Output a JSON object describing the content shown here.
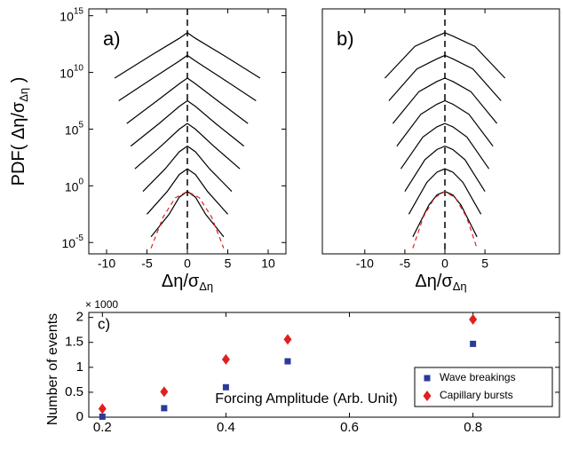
{
  "chart_data": [
    {
      "type": "line",
      "panel_label": "a)",
      "log_y": true,
      "vline": 0,
      "xlabel": {
        "main": "Δη/σ",
        "sub": "Δη"
      },
      "ylabel": {
        "main": "PDF( Δη/σ",
        "sub": "Δη",
        "end": " )"
      },
      "xlim": [
        -12.2,
        12.2
      ],
      "xticks": [
        -10,
        -5,
        0,
        5,
        10
      ],
      "ylim": [
        1e-06,
        4000000000000000.0
      ],
      "yticks": [
        {
          "value": 1e-05,
          "label": "10",
          "sup": "-5"
        },
        {
          "value": 1,
          "label": "10",
          "sup": "0"
        },
        {
          "value": 100000.0,
          "label": "10",
          "sup": "5"
        },
        {
          "value": 10000000000.0,
          "label": "10",
          "sup": "10"
        },
        {
          "value": 1000000000000000.0,
          "label": "10",
          "sup": "15"
        }
      ],
      "series": [
        {
          "color": "#000000",
          "x": [
            -4.5,
            -2.25,
            -1,
            0,
            1,
            2.25,
            4.5
          ],
          "values": [
            3.16e-05,
            0.00316,
            0.1,
            0.316,
            0.1,
            0.00316,
            3.16e-05
          ]
        },
        {
          "color": "#000000",
          "x": [
            -5,
            -2.5,
            -1,
            0,
            1,
            2.5,
            5
          ],
          "values": [
            0.00316,
            0.316,
            10.0,
            31.6,
            10.0,
            0.316,
            0.00316
          ]
        },
        {
          "color": "#000000",
          "x": [
            -5.5,
            -2.75,
            -1,
            0,
            1,
            2.75,
            5.5
          ],
          "values": [
            0.316,
            31.6,
            1000.0,
            3160.0,
            1000.0,
            31.6,
            0.316
          ]
        },
        {
          "color": "#000000",
          "x": [
            -6.5,
            -3.25,
            -1,
            0,
            1,
            3.25,
            6.5
          ],
          "values": [
            31.6,
            3160.0,
            100000.0,
            316000.0,
            100000.0,
            3160.0,
            31.6
          ]
        },
        {
          "color": "#000000",
          "x": [
            -7,
            -3.5,
            -1,
            0,
            1,
            3.5,
            7
          ],
          "values": [
            3160.0,
            316000.0,
            10000000.0,
            31600000.0,
            10000000.0,
            316000.0,
            3160.0
          ]
        },
        {
          "color": "#000000",
          "x": [
            -7.5,
            -3.75,
            -1,
            0,
            1,
            3.75,
            7.5
          ],
          "values": [
            316000.0,
            31600000.0,
            1000000000.0,
            3160000000.0,
            1000000000.0,
            31600000.0,
            316000.0
          ]
        },
        {
          "color": "#000000",
          "x": [
            -8.5,
            -4.25,
            -1,
            0,
            1,
            4.25,
            8.5
          ],
          "values": [
            31600000.0,
            3160000000.0,
            100000000000.0,
            316000000000.0,
            100000000000.0,
            3160000000.0,
            31600000.0
          ]
        },
        {
          "color": "#000000",
          "x": [
            -9,
            -4.5,
            -1,
            0,
            1,
            4.5,
            9
          ],
          "values": [
            3160000000.0,
            316000000000.0,
            10000000000000.0,
            31600000000000.0,
            10000000000000.0,
            316000000000.0,
            3160000000.0
          ]
        },
        {
          "color": "#e02020",
          "dash": true,
          "x": [
            -4.5,
            -3,
            -1.5,
            0,
            1.5,
            3,
            4.5
          ],
          "values": [
            3.16e-06,
            0.00178,
            0.087,
            0.316,
            0.087,
            0.00178,
            3.16e-06
          ]
        }
      ]
    },
    {
      "type": "line",
      "panel_label": "b)",
      "log_y": true,
      "vline": 0,
      "xlabel": {
        "main": "Δη/σ",
        "sub": "Δη"
      },
      "xlim": [
        -15.3,
        14.3
      ],
      "xticks": [
        -10,
        -5,
        0,
        5
      ],
      "ylim": [
        1e-06,
        4000000000000000.0
      ],
      "series": [
        {
          "color": "#000000",
          "x": [
            -4,
            -2,
            -1,
            0,
            1,
            2,
            4
          ],
          "values": [
            3.16e-05,
            0.02,
            0.158,
            0.316,
            0.158,
            0.02,
            3.16e-05
          ]
        },
        {
          "color": "#000000",
          "x": [
            -4.5,
            -2.25,
            -1,
            0,
            1,
            2.25,
            4.5
          ],
          "values": [
            0.00316,
            2,
            15.8,
            31.6,
            15.8,
            2,
            0.00316
          ]
        },
        {
          "color": "#000000",
          "x": [
            -5,
            -2.5,
            -1,
            0,
            1,
            2.5,
            5
          ],
          "values": [
            0.316,
            200.0,
            1580.0,
            3160.0,
            1580.0,
            200.0,
            0.316
          ]
        },
        {
          "color": "#000000",
          "x": [
            -5.5,
            -2.75,
            -1,
            0,
            1,
            2.75,
            5.5
          ],
          "values": [
            31.6,
            20000.0,
            158000.0,
            316000.0,
            158000.0,
            20000.0,
            31.6
          ]
        },
        {
          "color": "#000000",
          "x": [
            -6,
            -3,
            -1,
            0,
            1,
            3,
            6
          ],
          "values": [
            3160.0,
            2000000.0,
            15800000.0,
            31600000.0,
            15800000.0,
            2000000.0,
            3160.0
          ]
        },
        {
          "color": "#000000",
          "x": [
            -6.5,
            -3.25,
            -1,
            0,
            1,
            3.25,
            6.5
          ],
          "values": [
            316000.0,
            200000000.0,
            1580000000.0,
            3160000000.0,
            1580000000.0,
            200000000.0,
            316000.0
          ]
        },
        {
          "color": "#000000",
          "x": [
            -7,
            -3.5,
            -1,
            0,
            1,
            3.5,
            7
          ],
          "values": [
            31600000.0,
            20000000000.0,
            158000000000.0,
            316000000000.0,
            158000000000.0,
            20000000000.0,
            31600000.0
          ]
        },
        {
          "color": "#000000",
          "x": [
            -7.5,
            -3.75,
            -1,
            0,
            1,
            3.75,
            7.5
          ],
          "values": [
            3160000000.0,
            2000000000000.0,
            15800000000000.0,
            31600000000000.0,
            15800000000000.0,
            2000000000000.0,
            3160000000.0
          ]
        },
        {
          "color": "#e02020",
          "dash": true,
          "x": [
            -4,
            -2.7,
            -1.3,
            0,
            1.3,
            2.7,
            4
          ],
          "values": [
            3.16e-06,
            0.00178,
            0.087,
            0.316,
            0.087,
            0.00178,
            3.16e-06
          ]
        }
      ]
    },
    {
      "type": "scatter",
      "panel_label": "c)",
      "xlabel": "Forcing Amplitude (Arb. Unit)",
      "ylabel": "Number of events",
      "multiplier": "× 1000",
      "xlim": [
        0.178,
        0.94
      ],
      "xticks": [
        0.2,
        0.4,
        0.6,
        0.8
      ],
      "ylim": [
        0,
        2.1
      ],
      "yticks": [
        0,
        0.5,
        1,
        1.5,
        2
      ],
      "legend": "lower right",
      "series": [
        {
          "name": "Wave breakings",
          "color": "#2b3a9a",
          "marker": "square",
          "x": [
            0.2,
            0.3,
            0.4,
            0.5,
            0.8
          ],
          "values": [
            0.01,
            0.18,
            0.6,
            1.12,
            1.47
          ]
        },
        {
          "name": "Capillary bursts",
          "color": "#e02020",
          "marker": "diamond",
          "x": [
            0.2,
            0.3,
            0.4,
            0.5,
            0.8
          ],
          "values": [
            0.17,
            0.51,
            1.16,
            1.56,
            1.96
          ]
        }
      ]
    }
  ]
}
